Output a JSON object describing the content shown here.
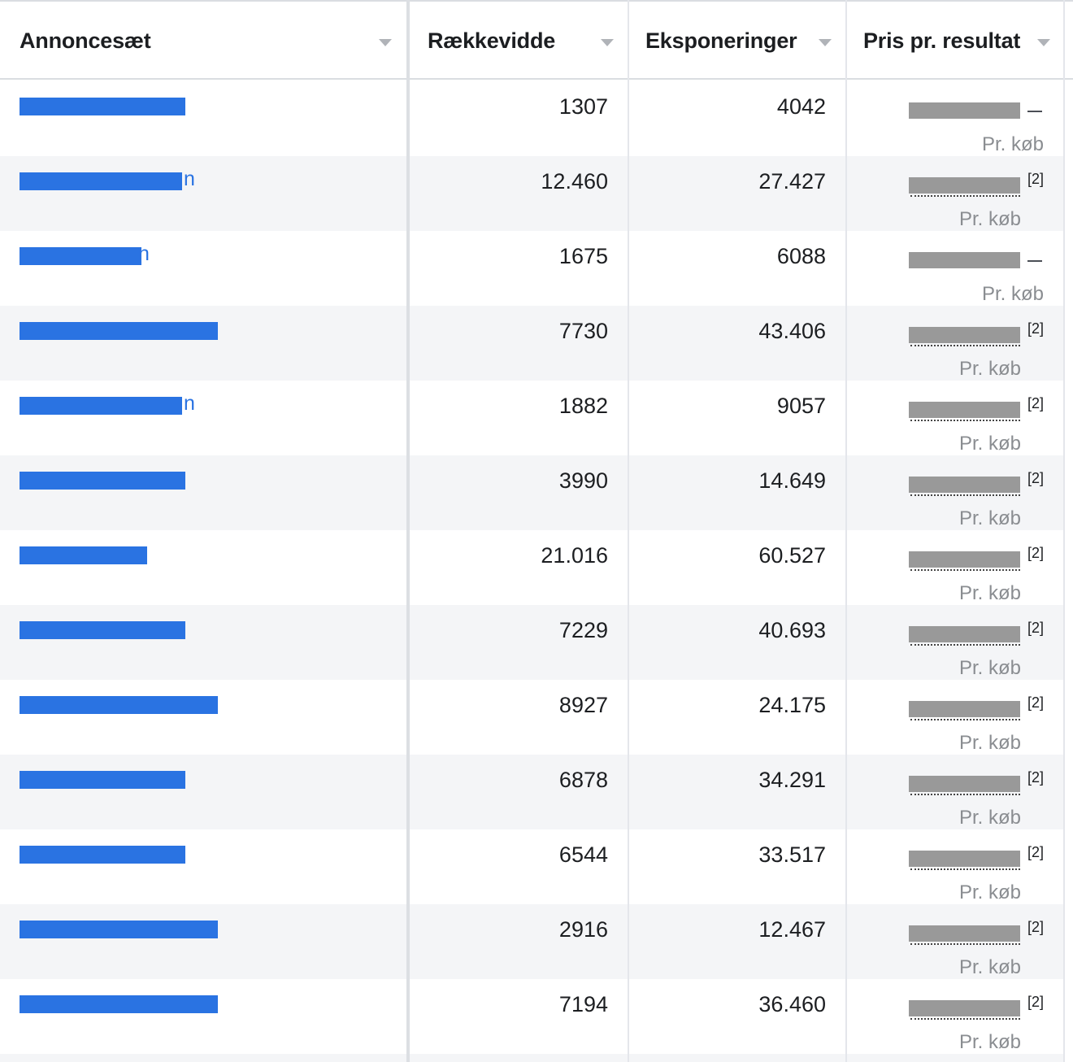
{
  "columns": {
    "ad_set": "Annoncesæt",
    "reach": "Rækkevidde",
    "impressions": "Eksponeringer",
    "cost_per_result": "Pris pr. resultat"
  },
  "rows": [
    {
      "reach": "1307",
      "impressions": "4042",
      "cost_suffix": "—",
      "sub": "Pr. køb"
    },
    {
      "name_tail": "n",
      "reach": "12.460",
      "impressions": "27.427",
      "cost_suffix": "[2]",
      "sub": "Pr. køb"
    },
    {
      "name_tail": "n",
      "reach": "1675",
      "impressions": "6088",
      "cost_suffix": "—",
      "sub": "Pr. køb"
    },
    {
      "reach": "7730",
      "impressions": "43.406",
      "cost_suffix": "[2]",
      "sub": "Pr. køb"
    },
    {
      "name_tail": "n",
      "reach": "1882",
      "impressions": "9057",
      "cost_suffix": "[2]",
      "sub": "Pr. køb"
    },
    {
      "reach": "3990",
      "impressions": "14.649",
      "cost_suffix": "[2]",
      "sub": "Pr. køb"
    },
    {
      "reach": "21.016",
      "impressions": "60.527",
      "cost_suffix": "[2]",
      "sub": "Pr. køb"
    },
    {
      "reach": "7229",
      "impressions": "40.693",
      "cost_suffix": "[2]",
      "sub": "Pr. køb"
    },
    {
      "reach": "8927",
      "impressions": "24.175",
      "cost_suffix": "[2]",
      "sub": "Pr. køb"
    },
    {
      "reach": "6878",
      "impressions": "34.291",
      "cost_suffix": "[2]",
      "sub": "Pr. køb"
    },
    {
      "reach": "6544",
      "impressions": "33.517",
      "cost_suffix": "[2]",
      "sub": "Pr. køb"
    },
    {
      "reach": "2916",
      "impressions": "12.467",
      "cost_suffix": "[2]",
      "sub": "Pr. køb"
    },
    {
      "reach": "7194",
      "impressions": "36.460",
      "cost_suffix": "[2]",
      "sub": "Pr. køb"
    }
  ],
  "colors": {
    "link_redaction": "#2a73e2",
    "cost_redaction": "#999999",
    "alt_row": "#f4f5f7"
  }
}
